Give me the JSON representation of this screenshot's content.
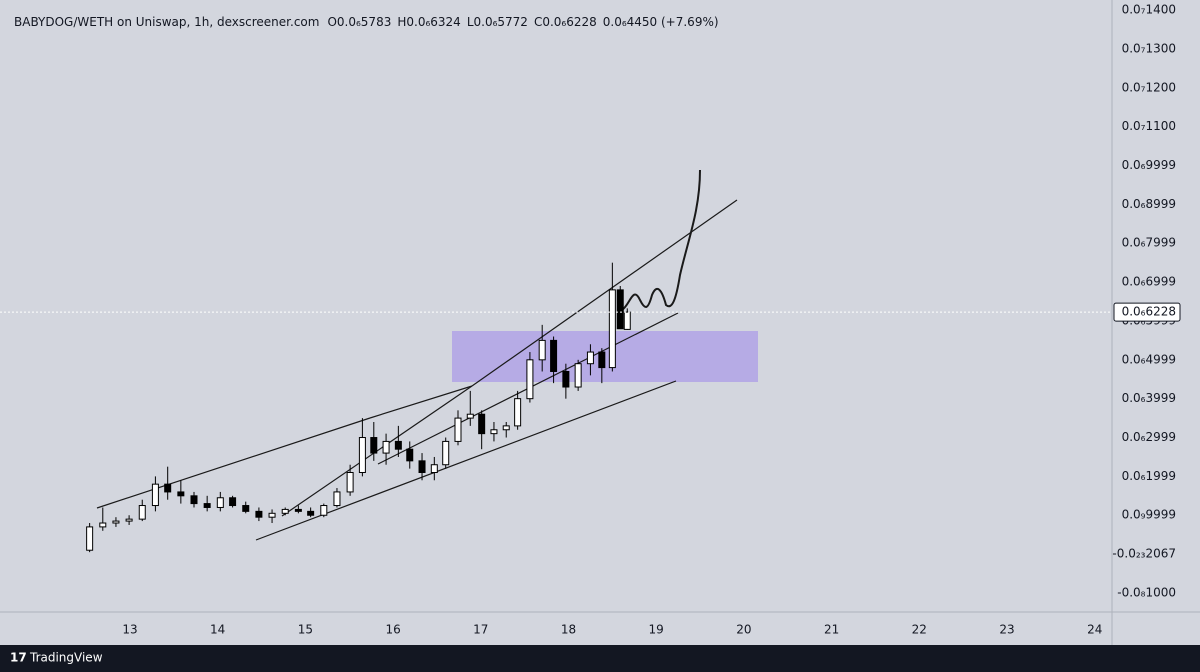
{
  "chart_data": {
    "type": "candlestick",
    "title": "BABYDOG/WETH on Uniswap, 1h, dexscreener.com",
    "ohlc_legend": [
      "O0.0₆5783",
      "H0.0₆6324",
      "L0.0₆5772",
      "C0.0₆6228",
      "0.0₆4450 (+7.69%)"
    ],
    "x": [
      12.54,
      12.69,
      12.84,
      12.99,
      13.14,
      13.29,
      13.43,
      13.58,
      13.73,
      13.88,
      14.03,
      14.17,
      14.32,
      14.47,
      14.62,
      14.77,
      14.92,
      15.06,
      15.21,
      15.36,
      15.51,
      15.65,
      15.78,
      15.92,
      16.06,
      16.19,
      16.33,
      16.47,
      16.6,
      16.74,
      16.88,
      17.01,
      17.15,
      17.29,
      17.42,
      17.56,
      17.7,
      17.83,
      17.97,
      18.11,
      18.25,
      18.38,
      18.5,
      18.59,
      18.67
    ],
    "open": [
      1e-08,
      7e-08,
      8e-08,
      8.5e-08,
      9e-08,
      1.25e-07,
      1.8e-07,
      1.6e-07,
      1.5e-07,
      1.3e-07,
      1.2e-07,
      1.45e-07,
      1.25e-07,
      1.1e-07,
      9.5e-08,
      1.05e-07,
      1.15e-07,
      1.1e-07,
      1e-07,
      1.25e-07,
      1.6e-07,
      2.1e-07,
      3e-07,
      2.6e-07,
      2.9e-07,
      2.7e-07,
      2.4e-07,
      2.1e-07,
      2.3e-07,
      2.9e-07,
      3.5e-07,
      3.6e-07,
      3.1e-07,
      3.2e-07,
      3.3e-07,
      4e-07,
      5e-07,
      5.5e-07,
      4.7e-07,
      4.3e-07,
      4.9e-07,
      5.2e-07,
      4.8e-07,
      6.8e-07,
      5.783e-07
    ],
    "high": [
      8e-08,
      1.2e-07,
      9.5e-08,
      1e-07,
      1.4e-07,
      2e-07,
      2.25e-07,
      1.9e-07,
      1.6e-07,
      1.5e-07,
      1.6e-07,
      1.5e-07,
      1.35e-07,
      1.2e-07,
      1.15e-07,
      1.2e-07,
      1.25e-07,
      1.2e-07,
      1.3e-07,
      1.7e-07,
      2.3e-07,
      3.5e-07,
      3.4e-07,
      3.1e-07,
      3.3e-07,
      2.9e-07,
      2.6e-07,
      2.5e-07,
      3e-07,
      3.7e-07,
      4.2e-07,
      3.7e-07,
      3.4e-07,
      3.4e-07,
      4.2e-07,
      5.2e-07,
      5.9e-07,
      5.6e-07,
      4.9e-07,
      5e-07,
      5.4e-07,
      5.3e-07,
      7.5e-07,
      6.9e-07,
      6.324e-07
    ],
    "low": [
      5e-09,
      6e-08,
      7e-08,
      7.5e-08,
      8.5e-08,
      1.1e-07,
      1.4e-07,
      1.3e-07,
      1.2e-07,
      1.1e-07,
      1.1e-07,
      1.2e-07,
      1.05e-07,
      8.5e-08,
      8e-08,
      1e-07,
      1.05e-07,
      9.5e-08,
      9.5e-08,
      1.2e-07,
      1.5e-07,
      2e-07,
      2.4e-07,
      2.3e-07,
      2.5e-07,
      2.2e-07,
      1.9e-07,
      1.9e-07,
      2.2e-07,
      2.8e-07,
      3.3e-07,
      2.7e-07,
      2.9e-07,
      3e-07,
      3.2e-07,
      3.9e-07,
      4.7e-07,
      4.4e-07,
      4e-07,
      4.2e-07,
      4.6e-07,
      4.4e-07,
      4.7e-07,
      5.8e-07,
      5.772e-07
    ],
    "close": [
      7e-08,
      8e-08,
      8.5e-08,
      9e-08,
      1.25e-07,
      1.8e-07,
      1.6e-07,
      1.5e-07,
      1.3e-07,
      1.2e-07,
      1.45e-07,
      1.25e-07,
      1.1e-07,
      9.5e-08,
      1.05e-07,
      1.15e-07,
      1.1e-07,
      1e-07,
      1.25e-07,
      1.6e-07,
      2.1e-07,
      3e-07,
      2.6e-07,
      2.9e-07,
      2.7e-07,
      2.4e-07,
      2.1e-07,
      2.3e-07,
      2.9e-07,
      3.5e-07,
      3.6e-07,
      3.1e-07,
      3.2e-07,
      3.3e-07,
      4e-07,
      5e-07,
      5.5e-07,
      4.7e-07,
      4.3e-07,
      4.9e-07,
      5.2e-07,
      4.8e-07,
      6.8e-07,
      5.8e-07,
      6.228e-07
    ],
    "up_color": "#ffffff",
    "down_color": "#000000",
    "xlim": [
      11.518,
      24.197
    ],
    "xticks": [
      13,
      14,
      15,
      16,
      17,
      18,
      19,
      20,
      21,
      22,
      23,
      24
    ],
    "ylim": [
      -1.49e-07,
      1.426e-06
    ],
    "yticks": [
      {
        "value": 1.4e-06,
        "label": "0.0₇1400"
      },
      {
        "value": 1.3e-06,
        "label": "0.0₇1300"
      },
      {
        "value": 1.2e-06,
        "label": "0.0₇1200"
      },
      {
        "value": 1.1e-06,
        "label": "0.0₇1100"
      },
      {
        "value": 1e-06,
        "label": "0.0₆9999"
      },
      {
        "value": 9e-07,
        "label": "0.0₆8999"
      },
      {
        "value": 8e-07,
        "label": "0.0₆7999"
      },
      {
        "value": 7e-07,
        "label": "0.0₆6999"
      },
      {
        "value": 6e-07,
        "label": "0.0₆5999"
      },
      {
        "value": 5e-07,
        "label": "0.0₆4999"
      },
      {
        "value": 4e-07,
        "label": "0.0₆3999"
      },
      {
        "value": 3e-07,
        "label": "0.0₆2999"
      },
      {
        "value": 2e-07,
        "label": "0.0₆1999"
      },
      {
        "value": 1e-07,
        "label": "0.0₉9999"
      },
      {
        "value": 0,
        "label": "-0.0₂₃2067"
      },
      {
        "value": -1e-07,
        "label": "-0.0₈1000"
      }
    ],
    "last_price": {
      "value": 6.228e-07,
      "label": "0.0₆6228"
    }
  },
  "footer": {
    "brand": "TradingView"
  }
}
